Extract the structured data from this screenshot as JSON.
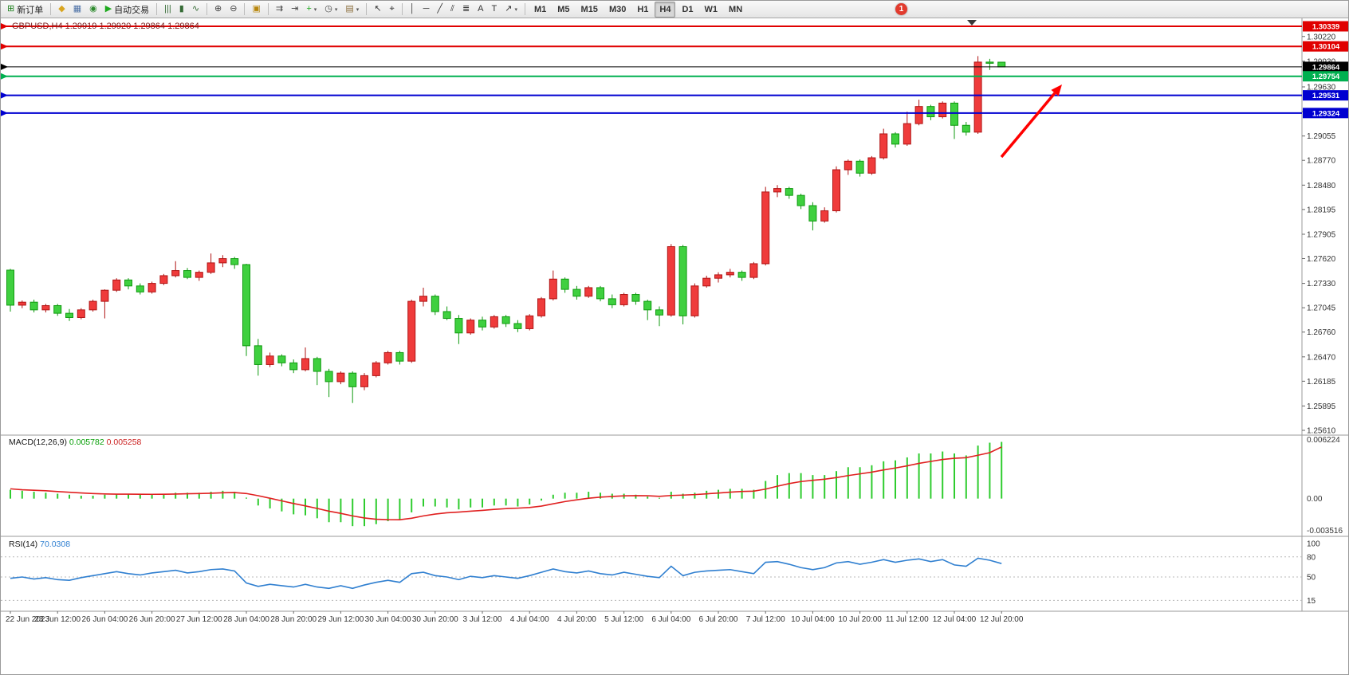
{
  "toolbar": {
    "dropdown_glyph": "▾",
    "notification_badge": "1",
    "groups": [
      {
        "items": [
          {
            "id": "new-order-button",
            "glyph": "⊞",
            "color": "#1a7f1a",
            "label": "新订单"
          }
        ]
      },
      {
        "items": [
          {
            "id": "metaeditor-button",
            "glyph": "◆",
            "color": "#d9a520"
          },
          {
            "id": "terminal-button",
            "glyph": "▦",
            "color": "#4a6fa5"
          },
          {
            "id": "mql5-community-button",
            "glyph": "◉",
            "color": "#2e8b2e"
          },
          {
            "id": "autotrading-button",
            "glyph": "▶",
            "color": "#1faa1f",
            "label": "自动交易"
          }
        ]
      },
      {
        "items": [
          {
            "id": "bar-chart-button",
            "glyph": "|||",
            "color": "#356b35"
          },
          {
            "id": "candlestick-chart-button",
            "glyph": "▮",
            "color": "#356b35"
          },
          {
            "id": "line-chart-button",
            "glyph": "∿",
            "color": "#356b35"
          }
        ]
      },
      {
        "items": [
          {
            "id": "zoom-in-button",
            "glyph": "⊕",
            "color": "#444444"
          },
          {
            "id": "zoom-out-button",
            "glyph": "⊖",
            "color": "#444444"
          }
        ]
      },
      {
        "items": [
          {
            "id": "tile-windows-button",
            "glyph": "▣",
            "color": "#b8860b"
          }
        ]
      },
      {
        "items": [
          {
            "id": "auto-scroll-button",
            "glyph": "⇉",
            "color": "#444444"
          },
          {
            "id": "chart-shift-button",
            "glyph": "⇥",
            "color": "#444444"
          },
          {
            "id": "indicators-button",
            "glyph": "+",
            "color": "#1faa1f",
            "dropdown": true
          },
          {
            "id": "periods-button",
            "glyph": "◷",
            "color": "#444444",
            "dropdown": true
          },
          {
            "id": "templates-button",
            "glyph": "▤",
            "color": "#8a6d3b",
            "dropdown": true
          }
        ]
      },
      {
        "items": [
          {
            "id": "cursor-button",
            "glyph": "↖",
            "color": "#333333"
          },
          {
            "id": "crosshair-button",
            "glyph": "⌖",
            "color": "#333333"
          }
        ]
      },
      {
        "items": [
          {
            "id": "vertical-line-button",
            "glyph": "│",
            "color": "#333333"
          },
          {
            "id": "horizontal-line-button",
            "glyph": "─",
            "color": "#333333"
          },
          {
            "id": "trendline-button",
            "glyph": "╱",
            "color": "#333333"
          },
          {
            "id": "equidistant-channel-button",
            "glyph": "⫽",
            "color": "#333333"
          },
          {
            "id": "fibonacci-button",
            "glyph": "≣",
            "color": "#333333"
          },
          {
            "id": "text-button",
            "glyph": "A",
            "color": "#333333"
          },
          {
            "id": "text-label-button",
            "glyph": "T",
            "color": "#333333"
          },
          {
            "id": "arrows-button",
            "glyph": "↗",
            "color": "#333333",
            "dropdown": true
          }
        ]
      },
      {
        "items": [
          {
            "id": "timeframe-m1",
            "label": "M1",
            "tf": true
          },
          {
            "id": "timeframe-m5",
            "label": "M5",
            "tf": true
          },
          {
            "id": "timeframe-m15",
            "label": "M15",
            "tf": true
          },
          {
            "id": "timeframe-m30",
            "label": "M30",
            "tf": true
          },
          {
            "id": "timeframe-h1",
            "label": "H1",
            "tf": true
          },
          {
            "id": "timeframe-h4",
            "label": "H4",
            "tf": true,
            "active": true
          },
          {
            "id": "timeframe-d1",
            "label": "D1",
            "tf": true
          },
          {
            "id": "timeframe-w1",
            "label": "W1",
            "tf": true
          },
          {
            "id": "timeframe-mn",
            "label": "MN",
            "tf": true
          }
        ]
      }
    ]
  },
  "main_chart": {
    "title": "GBPUSD,H4 1.29919 1.29920 1.29864 1.29864",
    "symbol": "GBPUSD",
    "period": "H4",
    "ohlc": {
      "open": "1.29919",
      "high": "1.29920",
      "low": "1.29864",
      "close": "1.29864"
    },
    "current_price": "1.29864",
    "horizontal_lines": [
      {
        "price": 1.30339,
        "label": "1.30339",
        "color": "#e00000",
        "width": 2
      },
      {
        "price": 1.30104,
        "label": "1.30104",
        "color": "#e00000",
        "width": 2
      },
      {
        "price": 1.29864,
        "label": "1.29864",
        "color": "#000000",
        "width": 1
      },
      {
        "price": 1.29754,
        "label": "1.29754",
        "color": "#00b050",
        "width": 2
      },
      {
        "price": 1.29531,
        "label": "1.29531",
        "color": "#0000d0",
        "width": 2
      },
      {
        "price": 1.29324,
        "label": "1.29324",
        "color": "#0000d0",
        "width": 2
      }
    ],
    "price_axis": [
      1.3022,
      1.2993,
      1.2963,
      1.2934,
      1.29055,
      1.2877,
      1.2848,
      1.28195,
      1.27905,
      1.2762,
      1.2733,
      1.27045,
      1.2676,
      1.2647,
      1.26185,
      1.25895,
      1.2561
    ],
    "annotation_arrow": {
      "color": "#ff0000",
      "from": [
        1255,
        196
      ],
      "to": [
        1331,
        105
      ]
    },
    "shift_marker_x": 1218
  },
  "colors": {
    "up": "#ef3b3b",
    "up_border": "#b01414",
    "down": "#3fd03f",
    "down_border": "#0f9a0f",
    "macd_hist": "#2ecc2e",
    "macd_signal": "#e02020",
    "rsi_line": "#2f7fd0",
    "level_dash": "#b8b8b8",
    "separator": "#9a9a9a",
    "axis_text": "#333333"
  },
  "macd": {
    "label": "MACD(12,26,9)",
    "value_main": "0.005782",
    "value_signal": "0.005258",
    "axis": [
      "0.006224",
      "0.00",
      "-0.003516"
    ],
    "histogram": [
      0.0009,
      0.0008,
      0.0007,
      0.0006,
      0.0005,
      0.0004,
      0.0003,
      0.0003,
      0.0004,
      0.0005,
      0.0005,
      0.0004,
      0.0004,
      0.0005,
      0.0006,
      0.0006,
      0.0006,
      0.0007,
      0.0008,
      0.0007,
      0.0001,
      -0.0007,
      -0.001,
      -0.0013,
      -0.0016,
      -0.0017,
      -0.002,
      -0.0024,
      -0.0024,
      -0.0028,
      -0.0028,
      -0.0026,
      -0.0023,
      -0.0022,
      -0.0014,
      -0.0008,
      -0.0008,
      -0.0009,
      -0.0011,
      -0.0009,
      -0.0009,
      -0.0007,
      -0.0007,
      -0.0008,
      -0.0006,
      -0.0002,
      0.0004,
      0.0006,
      0.0006,
      0.0007,
      0.0006,
      0.0005,
      0.0005,
      0.0004,
      0.0002,
      0.0,
      0.0007,
      0.0005,
      0.0006,
      0.0008,
      0.0009,
      0.001,
      0.001,
      0.0009,
      0.0018,
      0.0024,
      0.0026,
      0.0026,
      0.0024,
      0.0024,
      0.0028,
      0.0032,
      0.0032,
      0.0034,
      0.0038,
      0.0039,
      0.0042,
      0.0046,
      0.0046,
      0.0048,
      0.0046,
      0.0044,
      0.0054,
      0.0057,
      0.005782
    ],
    "signal": [
      0.001,
      0.0009,
      0.00085,
      0.0008,
      0.00072,
      0.00065,
      0.00058,
      0.00052,
      0.00048,
      0.00046,
      0.00046,
      0.00045,
      0.00044,
      0.00045,
      0.00047,
      0.0005,
      0.00052,
      0.00055,
      0.0006,
      0.00062,
      0.00052,
      0.0003,
      4e-05,
      -0.00023,
      -0.0005,
      -0.00074,
      -0.001,
      -0.00128,
      -0.0015,
      -0.00176,
      -0.00197,
      -0.0021,
      -0.00214,
      -0.00215,
      -0.002,
      -0.00176,
      -0.00157,
      -0.00144,
      -0.00137,
      -0.00128,
      -0.0012,
      -0.0011,
      -0.00102,
      -0.00097,
      -0.0009,
      -0.00076,
      -0.00053,
      -0.0003,
      -0.00012,
      4e-05,
      0.00015,
      0.00022,
      0.00028,
      0.0003,
      0.00029,
      0.00023,
      0.00032,
      0.00036,
      0.00041,
      0.00049,
      0.00057,
      0.00066,
      0.00073,
      0.00076,
      0.00097,
      0.00126,
      0.00153,
      0.00174,
      0.00187,
      0.00198,
      0.00214,
      0.00235,
      0.00252,
      0.0027,
      0.00292,
      0.00312,
      0.00334,
      0.00359,
      0.00379,
      0.00399,
      0.00411,
      0.00417,
      0.00442,
      0.00468,
      0.005258
    ]
  },
  "rsi": {
    "label": "RSI(14)",
    "value": "70.0308",
    "level_labels": [
      "100",
      "80",
      "50",
      "15"
    ],
    "levels": [
      80,
      50,
      15
    ],
    "values": [
      48,
      50,
      47,
      49,
      46,
      45,
      49,
      52,
      55,
      58,
      55,
      53,
      56,
      58,
      60,
      56,
      58,
      61,
      62,
      59,
      41,
      36,
      39,
      37,
      35,
      39,
      35,
      33,
      37,
      33,
      38,
      42,
      45,
      42,
      55,
      57,
      52,
      50,
      46,
      51,
      49,
      52,
      50,
      48,
      52,
      57,
      62,
      58,
      56,
      59,
      55,
      53,
      57,
      54,
      51,
      49,
      66,
      52,
      57,
      59,
      60,
      61,
      58,
      55,
      72,
      73,
      69,
      64,
      61,
      64,
      71,
      73,
      69,
      72,
      76,
      72,
      75,
      77,
      73,
      76,
      68,
      66,
      78,
      75,
      70.03
    ]
  },
  "chart_data": {
    "type": "candlestick",
    "symbol": "GBPUSD",
    "timeframe": "H4",
    "y_range": [
      1.2561,
      1.30339
    ],
    "x_labels": [
      "22 Jun 2023",
      "23 Jun 12:00",
      "26 Jun 04:00",
      "26 Jun 20:00",
      "27 Jun 12:00",
      "28 Jun 04:00",
      "28 Jun 20:00",
      "29 Jun 12:00",
      "30 Jun 04:00",
      "30 Jun 20:00",
      "3 Jul 12:00",
      "4 Jul 04:00",
      "4 Jul 20:00",
      "5 Jul 12:00",
      "6 Jul 04:00",
      "6 Jul 20:00",
      "7 Jul 12:00",
      "10 Jul 04:00",
      "10 Jul 20:00",
      "11 Jul 12:00",
      "12 Jul 04:00",
      "12 Jul 20:00"
    ],
    "candles": [
      [
        1.27485,
        1.275,
        1.27,
        1.27075
      ],
      [
        1.27075,
        1.2713,
        1.2704,
        1.2711
      ],
      [
        1.2711,
        1.2714,
        1.2699,
        1.2702
      ],
      [
        1.2702,
        1.2709,
        1.2699,
        1.2707
      ],
      [
        1.2707,
        1.2709,
        1.2695,
        1.2698
      ],
      [
        1.2698,
        1.2703,
        1.2689,
        1.2693
      ],
      [
        1.2693,
        1.2704,
        1.2691,
        1.2702
      ],
      [
        1.2702,
        1.2714,
        1.27,
        1.2712
      ],
      [
        1.2712,
        1.2726,
        1.2692,
        1.2725
      ],
      [
        1.2725,
        1.2739,
        1.2723,
        1.2737
      ],
      [
        1.2737,
        1.2739,
        1.2726,
        1.273
      ],
      [
        1.273,
        1.2733,
        1.272,
        1.2723
      ],
      [
        1.2723,
        1.2735,
        1.2721,
        1.2733
      ],
      [
        1.2733,
        1.2744,
        1.2731,
        1.2742
      ],
      [
        1.2742,
        1.2759,
        1.274,
        1.2748
      ],
      [
        1.2748,
        1.2751,
        1.2738,
        1.274
      ],
      [
        1.274,
        1.2748,
        1.2736,
        1.2746
      ],
      [
        1.2746,
        1.2768,
        1.2744,
        1.2757
      ],
      [
        1.2757,
        1.2766,
        1.2752,
        1.2762
      ],
      [
        1.2762,
        1.2764,
        1.275,
        1.2755
      ],
      [
        1.2755,
        1.2756,
        1.2648,
        1.266
      ],
      [
        1.266,
        1.2668,
        1.2625,
        1.2638
      ],
      [
        1.2638,
        1.2652,
        1.2635,
        1.2648
      ],
      [
        1.2648,
        1.265,
        1.2636,
        1.264
      ],
      [
        1.264,
        1.2644,
        1.2628,
        1.2632
      ],
      [
        1.2632,
        1.2658,
        1.263,
        1.2645
      ],
      [
        1.2645,
        1.2647,
        1.2614,
        1.263
      ],
      [
        1.263,
        1.2633,
        1.26,
        1.2618
      ],
      [
        1.2618,
        1.263,
        1.2615,
        1.2628
      ],
      [
        1.2628,
        1.263,
        1.2593,
        1.2612
      ],
      [
        1.2612,
        1.2628,
        1.2608,
        1.2625
      ],
      [
        1.2625,
        1.2642,
        1.2623,
        1.264
      ],
      [
        1.264,
        1.2654,
        1.2638,
        1.2652
      ],
      [
        1.2652,
        1.2654,
        1.2638,
        1.2642
      ],
      [
        1.2642,
        1.2714,
        1.264,
        1.2712
      ],
      [
        1.2712,
        1.2728,
        1.2706,
        1.2718
      ],
      [
        1.2718,
        1.272,
        1.2696,
        1.27
      ],
      [
        1.27,
        1.2706,
        1.269,
        1.2692
      ],
      [
        1.2692,
        1.2696,
        1.2662,
        1.2675
      ],
      [
        1.2675,
        1.2692,
        1.2673,
        1.269
      ],
      [
        1.269,
        1.2694,
        1.2678,
        1.2682
      ],
      [
        1.2682,
        1.2696,
        1.268,
        1.2694
      ],
      [
        1.2694,
        1.2696,
        1.2682,
        1.2686
      ],
      [
        1.2686,
        1.269,
        1.2676,
        1.268
      ],
      [
        1.268,
        1.2697,
        1.2678,
        1.2695
      ],
      [
        1.2695,
        1.2717,
        1.2693,
        1.2715
      ],
      [
        1.2715,
        1.2748,
        1.2713,
        1.2738
      ],
      [
        1.2738,
        1.274,
        1.2722,
        1.2726
      ],
      [
        1.2726,
        1.273,
        1.2714,
        1.2718
      ],
      [
        1.2718,
        1.273,
        1.2716,
        1.2728
      ],
      [
        1.2728,
        1.273,
        1.2712,
        1.2715
      ],
      [
        1.2715,
        1.272,
        1.2704,
        1.2708
      ],
      [
        1.2708,
        1.2722,
        1.2706,
        1.272
      ],
      [
        1.272,
        1.2722,
        1.2708,
        1.2712
      ],
      [
        1.2712,
        1.2714,
        1.269,
        1.2702
      ],
      [
        1.2702,
        1.2706,
        1.2683,
        1.2696
      ],
      [
        1.2696,
        1.2779,
        1.2694,
        1.2776
      ],
      [
        1.2776,
        1.2778,
        1.2685,
        1.2695
      ],
      [
        1.2695,
        1.2733,
        1.2693,
        1.273
      ],
      [
        1.273,
        1.2742,
        1.2728,
        1.2739
      ],
      [
        1.2739,
        1.2746,
        1.2734,
        1.2743
      ],
      [
        1.2743,
        1.275,
        1.274,
        1.2746
      ],
      [
        1.2746,
        1.2748,
        1.2736,
        1.274
      ],
      [
        1.274,
        1.2758,
        1.2738,
        1.2756
      ],
      [
        1.2756,
        1.2846,
        1.2754,
        1.284
      ],
      [
        1.284,
        1.2848,
        1.2834,
        1.2844
      ],
      [
        1.2844,
        1.2846,
        1.2832,
        1.2836
      ],
      [
        1.2836,
        1.2838,
        1.282,
        1.2824
      ],
      [
        1.2824,
        1.2828,
        1.2795,
        1.2806
      ],
      [
        1.2806,
        1.2822,
        1.2804,
        1.2818
      ],
      [
        1.2818,
        1.287,
        1.2816,
        1.2866
      ],
      [
        1.2866,
        1.2878,
        1.286,
        1.2876
      ],
      [
        1.2876,
        1.2878,
        1.2858,
        1.2862
      ],
      [
        1.2862,
        1.2882,
        1.286,
        1.288
      ],
      [
        1.288,
        1.2914,
        1.2878,
        1.2908
      ],
      [
        1.2908,
        1.291,
        1.2892,
        1.2896
      ],
      [
        1.2896,
        1.2934,
        1.2894,
        1.292
      ],
      [
        1.292,
        1.2948,
        1.2918,
        1.294
      ],
      [
        1.294,
        1.2942,
        1.2924,
        1.2928
      ],
      [
        1.2928,
        1.2946,
        1.2926,
        1.2944
      ],
      [
        1.2944,
        1.2946,
        1.2902,
        1.2918
      ],
      [
        1.2918,
        1.2922,
        1.2906,
        1.291
      ],
      [
        1.291,
        1.2999,
        1.2908,
        1.2992
      ],
      [
        1.2992,
        1.29958,
        1.29828,
        1.29919
      ],
      [
        1.29919,
        1.2992,
        1.29864,
        1.29864
      ]
    ],
    "title": "GBPUSD,H4",
    "legend": [
      "MACD(12,26,9)",
      "RSI(14)"
    ]
  }
}
